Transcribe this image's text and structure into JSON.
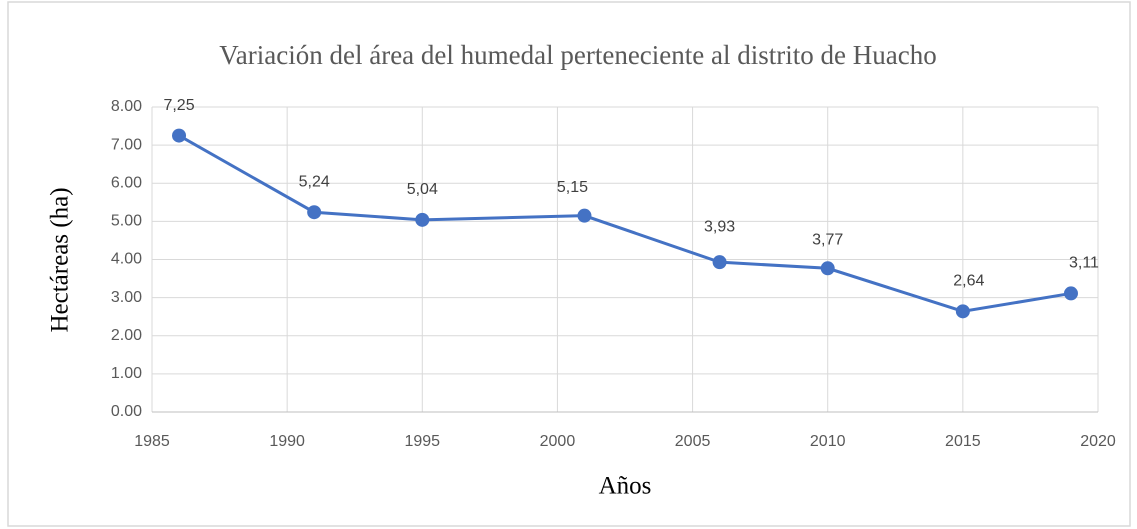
{
  "chart_data": {
    "type": "line",
    "title": "Variación del área del humedal perteneciente al distrito de Huacho",
    "x_label": "Años",
    "y_label": "Hectáreas (ha)",
    "x": [
      1986,
      1991,
      1995,
      2001,
      2006,
      2010,
      2015,
      2019
    ],
    "series": [
      {
        "name": "Hectáreas (ha)",
        "color": "#4472c4",
        "values": [
          7.25,
          5.24,
          5.04,
          5.15,
          3.93,
          3.77,
          2.64,
          3.11
        ],
        "value_labels": [
          "7,25",
          "5,24",
          "5,04",
          "5,15",
          "3,93",
          "3,77",
          "2,64",
          "3,11"
        ]
      }
    ],
    "xlim": [
      1985,
      2020
    ],
    "xticks": [
      1985,
      1990,
      1995,
      2000,
      2005,
      2010,
      2015,
      2020
    ],
    "ylim": [
      0,
      8
    ],
    "yticks": [
      {
        "value": 0,
        "label": "0.00"
      },
      {
        "value": 1,
        "label": "1.00"
      },
      {
        "value": 2,
        "label": "2.00"
      },
      {
        "value": 3,
        "label": "3.00"
      },
      {
        "value": 4,
        "label": "4.00"
      },
      {
        "value": 5,
        "label": "5.00"
      },
      {
        "value": 6,
        "label": "6.00"
      },
      {
        "value": 7,
        "label": "7.00"
      },
      {
        "value": 8,
        "label": "8.00"
      }
    ],
    "grid": true
  }
}
